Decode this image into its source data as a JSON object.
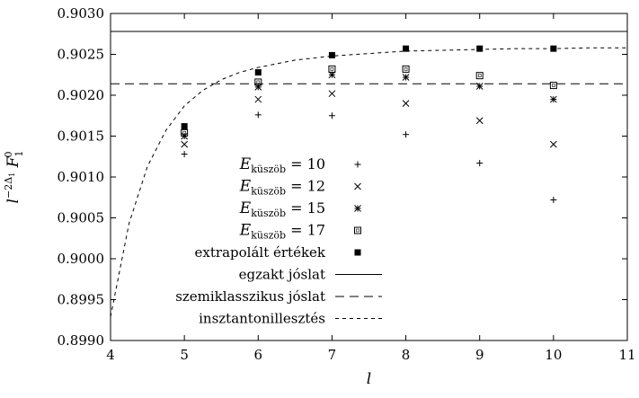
{
  "chart_data": {
    "type": "scatter",
    "xlabel": "l",
    "ylabel": "l−2Δ1 F01",
    "xlim": [
      4,
      11
    ],
    "ylim": [
      0.899,
      0.903
    ],
    "x_ticks": [
      "4",
      "5",
      "6",
      "7",
      "8",
      "9",
      "10",
      "11"
    ],
    "y_ticks": [
      "0.8990",
      "0.8995",
      "0.9000",
      "0.9005",
      "0.9010",
      "0.9015",
      "0.9020",
      "0.9025",
      "0.9030"
    ],
    "grid": false,
    "legend_position": "center-right",
    "series": [
      {
        "name": "E küszöb = 10",
        "name_math": {
          "base": "E",
          "sub": "küszöb",
          "rest": " = 10"
        },
        "marker": "plus",
        "x": [
          5,
          6,
          7,
          8,
          9,
          10
        ],
        "y": [
          0.90128,
          0.90176,
          0.90175,
          0.90152,
          0.90117,
          0.90072
        ]
      },
      {
        "name": "E küszöb = 12",
        "name_math": {
          "base": "E",
          "sub": "küszöb",
          "rest": " = 12"
        },
        "marker": "cross",
        "x": [
          5,
          6,
          7,
          8,
          9,
          10
        ],
        "y": [
          0.9014,
          0.90195,
          0.90202,
          0.9019,
          0.90169,
          0.9014
        ]
      },
      {
        "name": "E küszöb = 15",
        "name_math": {
          "base": "E",
          "sub": "küszöb",
          "rest": " = 15"
        },
        "marker": "star",
        "x": [
          5,
          6,
          7,
          8,
          9,
          10
        ],
        "y": [
          0.9015,
          0.9021,
          0.90225,
          0.90222,
          0.90211,
          0.90195
        ]
      },
      {
        "name": "E küszöb = 17",
        "name_math": {
          "base": "E",
          "sub": "küszöb",
          "rest": " = 17"
        },
        "marker": "open-square",
        "x": [
          5,
          6,
          7,
          8,
          9,
          10
        ],
        "y": [
          0.90154,
          0.90216,
          0.90232,
          0.90232,
          0.90224,
          0.90212
        ]
      },
      {
        "name": "extrapolált értékek",
        "marker": "filled-square",
        "x": [
          5,
          6,
          7,
          8,
          9,
          10
        ],
        "y": [
          0.90162,
          0.90228,
          0.90249,
          0.90257,
          0.90257,
          0.90257
        ]
      },
      {
        "name": "egzakt jóslat",
        "style": "solid",
        "type": "hline",
        "y": 0.90278
      },
      {
        "name": "szemiklasszikus jóslat",
        "style": "dashed",
        "type": "hline",
        "y": 0.90214
      },
      {
        "name": "insztantonillesztés",
        "style": "dotted",
        "type": "line",
        "x": [
          4.0,
          4.25,
          4.5,
          4.75,
          5.0,
          5.25,
          5.5,
          5.75,
          6.0,
          6.5,
          7.0,
          7.5,
          8.0,
          8.5,
          9.0,
          9.5,
          10.0,
          10.5,
          11.0
        ],
        "y": [
          0.89929,
          0.90043,
          0.90113,
          0.90157,
          0.90187,
          0.90206,
          0.90219,
          0.90228,
          0.90234,
          0.90243,
          0.90248,
          0.90251,
          0.90254,
          0.90255,
          0.90256,
          0.90257,
          0.90257,
          0.90258,
          0.90258
        ]
      }
    ]
  }
}
